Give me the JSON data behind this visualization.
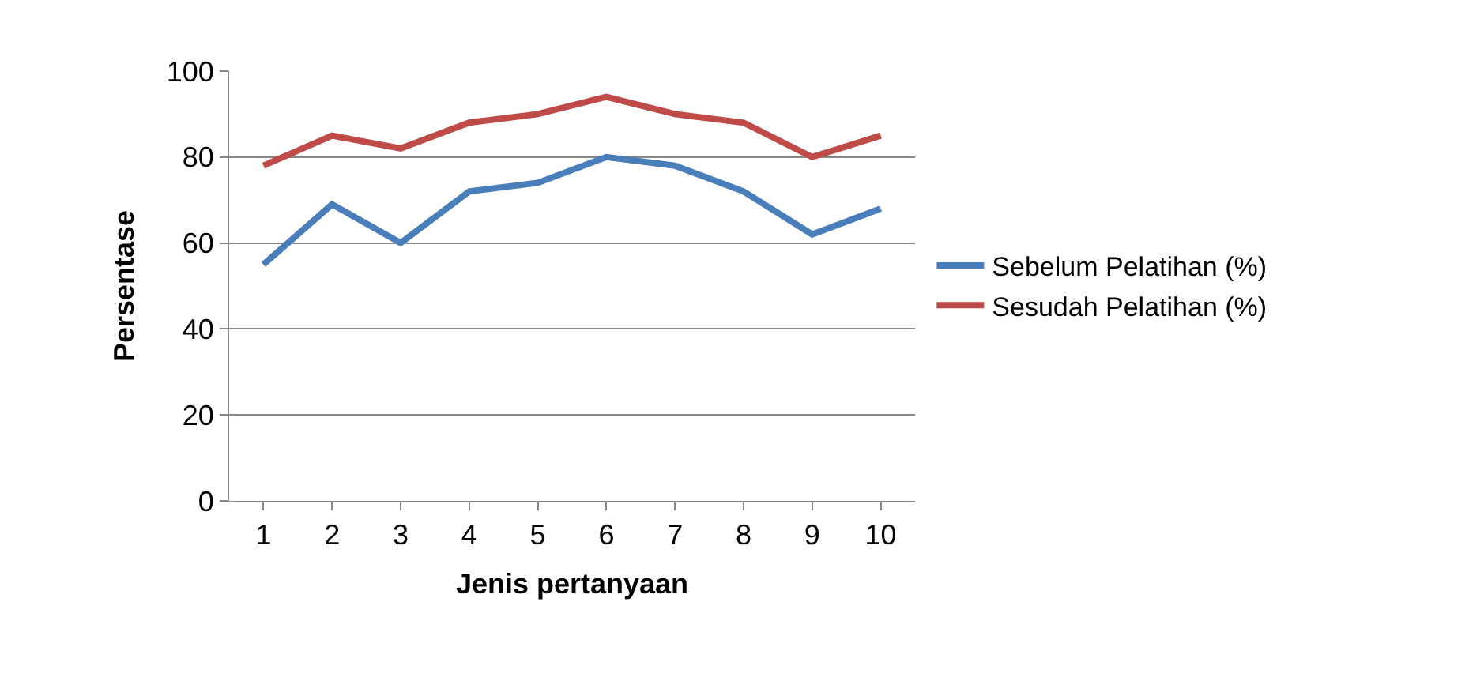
{
  "chart_data": {
    "type": "line",
    "xlabel": "Jenis pertanyaan",
    "ylabel": "Persentase",
    "categories": [
      "1",
      "2",
      "3",
      "4",
      "5",
      "6",
      "7",
      "8",
      "9",
      "10"
    ],
    "series": [
      {
        "name": "Sebelum Pelatihan (%)",
        "color": "#4a7ebb",
        "values": [
          55,
          69,
          60,
          72,
          74,
          80,
          78,
          72,
          62,
          68
        ]
      },
      {
        "name": "Sesudah Pelatihan (%)",
        "color": "#be4b48",
        "values": [
          78,
          85,
          82,
          88,
          90,
          94,
          90,
          88,
          80,
          85
        ]
      }
    ],
    "ylim": [
      0,
      100
    ],
    "yticks": [
      0,
      20,
      40,
      60,
      80,
      100
    ],
    "grid": "y",
    "legend": "right",
    "marker": "none",
    "line_style": "solid"
  }
}
